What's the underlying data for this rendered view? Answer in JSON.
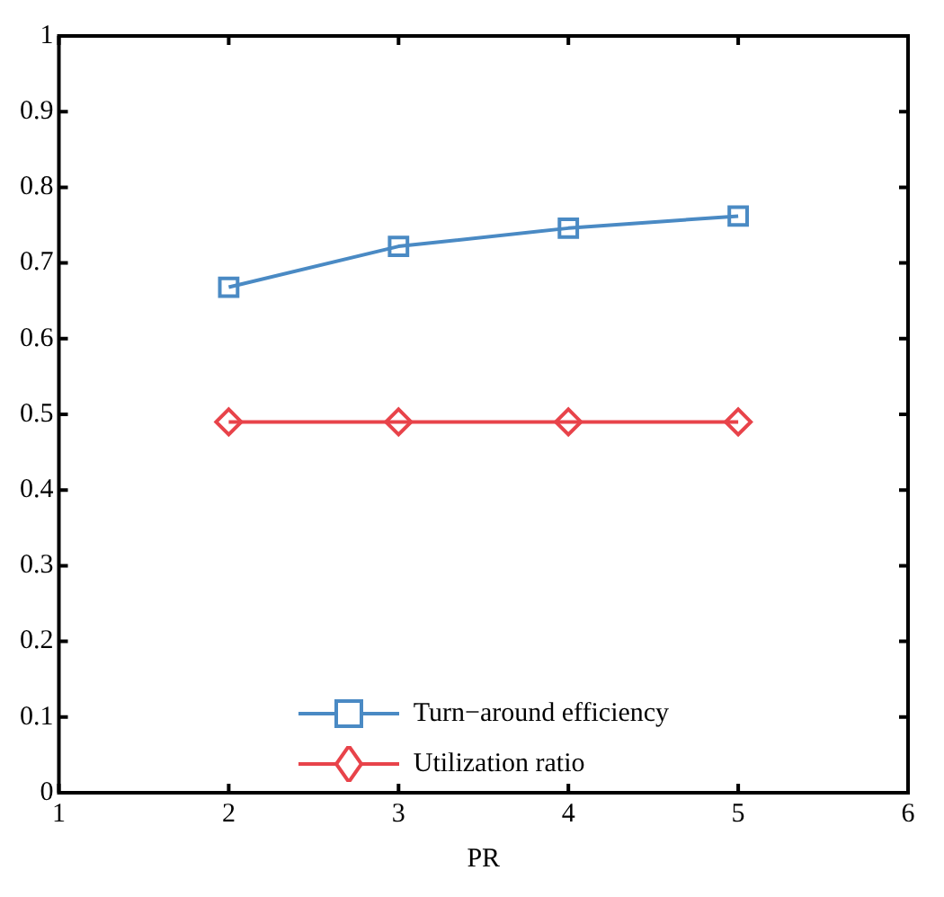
{
  "chart_data": {
    "type": "line",
    "xlabel": "PR",
    "x": [
      2,
      3,
      4,
      5
    ],
    "series": [
      {
        "name": "Turn−around efficiency",
        "color": "#4a8ac4",
        "values": [
          0.668,
          0.722,
          0.746,
          0.762
        ],
        "marker": "square"
      },
      {
        "name": "Utilization ratio",
        "color": "#e8434a",
        "values": [
          0.49,
          0.49,
          0.49,
          0.49
        ],
        "marker": "diamond"
      }
    ],
    "xlim": [
      1,
      6
    ],
    "xticks": [
      1,
      2,
      3,
      4,
      5,
      6
    ],
    "ylim": [
      0,
      1
    ],
    "yticks": [
      0,
      0.1,
      0.2,
      0.3,
      0.4,
      0.5,
      0.6,
      0.7,
      0.8,
      0.9,
      1
    ],
    "grid": false,
    "legend": "bottom",
    "line_style": "solid"
  }
}
